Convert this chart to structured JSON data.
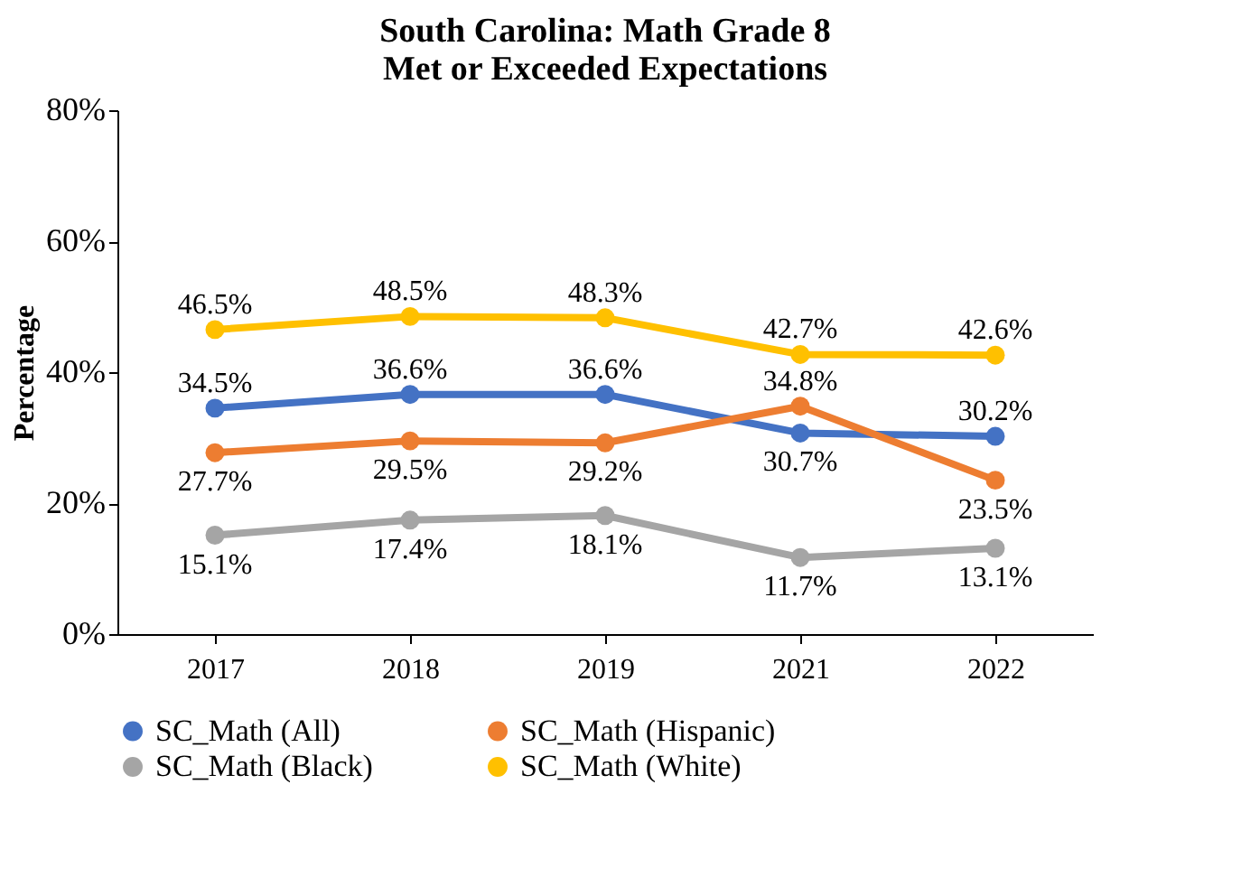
{
  "chart_data": {
    "type": "line",
    "title": "South Carolina: Math Grade 8\nMet or Exceeded Expectations",
    "ylabel": "Percentage",
    "categories": [
      "2017",
      "2018",
      "2019",
      "2021",
      "2022"
    ],
    "series": [
      {
        "name": "SC_Math (All)",
        "color": "#4472c4",
        "values": [
          34.5,
          36.6,
          36.6,
          30.7,
          30.2
        ],
        "value_labels": [
          "34.5%",
          "36.6%",
          "36.6%",
          "30.7%",
          "30.2%"
        ]
      },
      {
        "name": "SC_Math (Hispanic)",
        "color": "#ed7d31",
        "values": [
          27.7,
          29.5,
          29.2,
          34.8,
          23.5
        ],
        "value_labels": [
          "27.7%",
          "29.5%",
          "29.2%",
          "34.8%",
          "23.5%"
        ]
      },
      {
        "name": "SC_Math (Black)",
        "color": "#a5a5a5",
        "values": [
          15.1,
          17.4,
          18.1,
          11.7,
          13.1
        ],
        "value_labels": [
          "15.1%",
          "17.4%",
          "18.1%",
          "11.7%",
          "13.1%"
        ]
      },
      {
        "name": "SC_Math (White)",
        "color": "#ffc000",
        "values": [
          46.5,
          48.5,
          48.3,
          42.7,
          42.6
        ],
        "value_labels": [
          "46.5%",
          "48.5%",
          "48.3%",
          "42.7%",
          "42.6%"
        ]
      }
    ],
    "ylim": [
      0,
      80
    ],
    "yticks": [
      {
        "value": 0,
        "label": "0%"
      },
      {
        "value": 20,
        "label": "20%"
      },
      {
        "value": 40,
        "label": "40%"
      },
      {
        "value": 60,
        "label": "60%"
      },
      {
        "value": 80,
        "label": "80%"
      }
    ],
    "grid": false,
    "legend": "bottom",
    "marker": "circle",
    "line_style": "solid"
  }
}
